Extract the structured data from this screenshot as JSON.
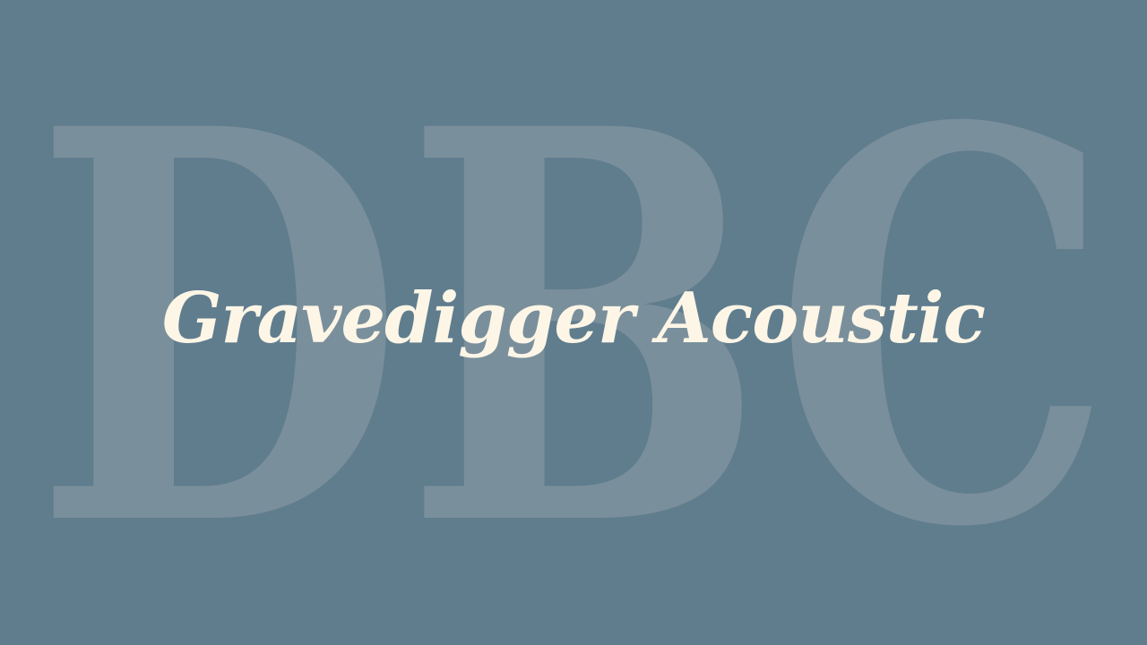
{
  "background_color": "#607d8e",
  "watermark": {
    "text": "DBC",
    "color": "#7a8f9c"
  },
  "title": {
    "text": "Gravedigger Acoustic",
    "color": "#fdf6e6"
  }
}
